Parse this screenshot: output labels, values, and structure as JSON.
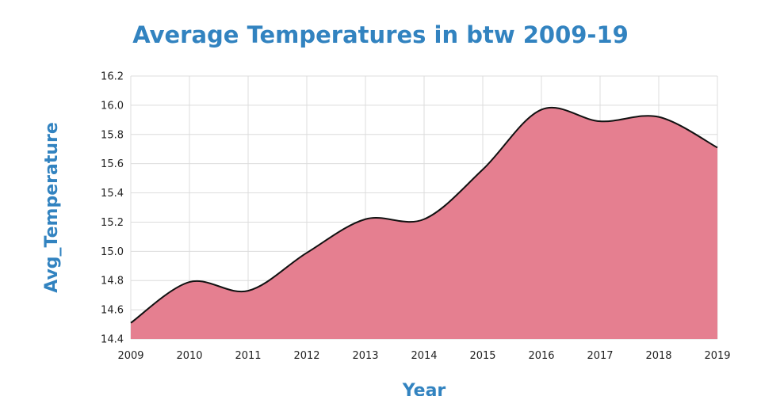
{
  "chart_data": {
    "type": "area",
    "title": "Average Temperatures in btw 2009-19",
    "xlabel": "Year",
    "ylabel": "Avg_Temperature",
    "x": [
      2009,
      2010,
      2011,
      2012,
      2013,
      2014,
      2015,
      2016,
      2017,
      2018,
      2019
    ],
    "series": [
      {
        "name": "Avg_Temperature",
        "values": [
          14.51,
          14.79,
          14.73,
          14.99,
          15.22,
          15.22,
          15.56,
          15.97,
          15.89,
          15.92,
          15.71
        ]
      }
    ],
    "xlim": [
      2009,
      2019
    ],
    "ylim": [
      14.4,
      16.2
    ],
    "yticks": [
      "14.4",
      "14.6",
      "14.8",
      "15.0",
      "15.2",
      "15.4",
      "15.6",
      "15.8",
      "16.0",
      "16.2"
    ],
    "xticks": [
      "2009",
      "2010",
      "2011",
      "2012",
      "2013",
      "2014",
      "2015",
      "2016",
      "2017",
      "2018",
      "2019"
    ],
    "grid": true,
    "colors": {
      "fill": "#e57f90",
      "line": "#111111",
      "title": "#3283c0",
      "grid": "#dcdcdc"
    }
  }
}
